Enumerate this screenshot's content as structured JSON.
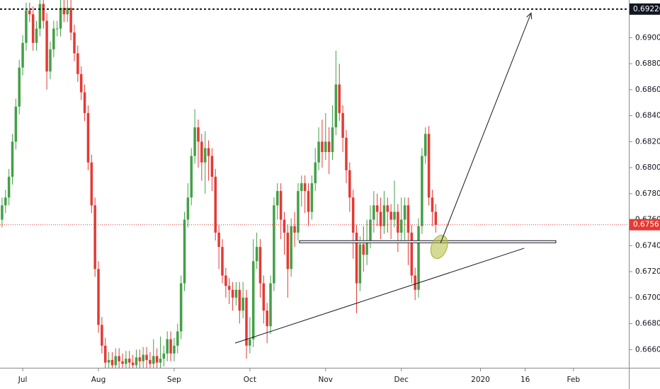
{
  "chart_data": {
    "type": "candlestick",
    "x": [
      0,
      1,
      2,
      3,
      4,
      5,
      6,
      7,
      8,
      9,
      10,
      11,
      12,
      13,
      14,
      15,
      16,
      17,
      18,
      19,
      20,
      21,
      22,
      23,
      24,
      25,
      26,
      27,
      28,
      29,
      30,
      31,
      32,
      33,
      34,
      35,
      36,
      37,
      38,
      39,
      40,
      41,
      42,
      43,
      44,
      45,
      46,
      47,
      48,
      49,
      50,
      51,
      52,
      53,
      54,
      55,
      56,
      57,
      58,
      59,
      60,
      61,
      62,
      63,
      64,
      65,
      66,
      67,
      68,
      69,
      70,
      71,
      72,
      73,
      74,
      75,
      76,
      77,
      78,
      79,
      80,
      81,
      82,
      83,
      84,
      85,
      86,
      87,
      88,
      89,
      90,
      91,
      92,
      93,
      94,
      95,
      96,
      97,
      98,
      99,
      100,
      101,
      102,
      103,
      104,
      105,
      106,
      107,
      108,
      109,
      110,
      111,
      112,
      113,
      114,
      115,
      116,
      117,
      118,
      119,
      120,
      121,
      122,
      123,
      124,
      125,
      126
    ],
    "open": [
      0.676,
      0.6771,
      0.6777,
      0.6793,
      0.682,
      0.6847,
      0.6877,
      0.6896,
      0.6921,
      0.6918,
      0.6896,
      0.6907,
      0.6926,
      0.6913,
      0.6874,
      0.6891,
      0.6907,
      0.6907,
      0.6923,
      0.6918,
      0.6923,
      0.6904,
      0.6888,
      0.6872,
      0.6858,
      0.6842,
      0.6804,
      0.6771,
      0.6722,
      0.6679,
      0.6663,
      0.665,
      0.6652,
      0.6648,
      0.6655,
      0.6651,
      0.6649,
      0.6653,
      0.665,
      0.6648,
      0.6654,
      0.6651,
      0.6656,
      0.6652,
      0.6649,
      0.6655,
      0.665,
      0.6653,
      0.6657,
      0.6668,
      0.6657,
      0.6663,
      0.6674,
      0.6711,
      0.676,
      0.6777,
      0.6809,
      0.6831,
      0.682,
      0.6804,
      0.6815,
      0.6809,
      0.6793,
      0.675,
      0.6739,
      0.6717,
      0.6709,
      0.6706,
      0.67,
      0.6706,
      0.669,
      0.67,
      0.6663,
      0.6668,
      0.6728,
      0.6739,
      0.6711,
      0.669,
      0.6678,
      0.6711,
      0.6771,
      0.6782,
      0.676,
      0.675,
      0.6722,
      0.6755,
      0.675,
      0.6782,
      0.6788,
      0.6782,
      0.6766,
      0.6788,
      0.6804,
      0.682,
      0.6812,
      0.682,
      0.6812,
      0.6831,
      0.6864,
      0.6842,
      0.6823,
      0.6798,
      0.6777,
      0.675,
      0.6711,
      0.6741,
      0.6733,
      0.6744,
      0.676,
      0.6771,
      0.6766,
      0.6755,
      0.6771,
      0.6766,
      0.676,
      0.6766,
      0.675,
      0.676,
      0.6771,
      0.675,
      0.6717,
      0.6706,
      0.6755,
      0.6809,
      0.6826,
      0.6777,
      0.6766
    ],
    "high": [
      0.6777,
      0.6783,
      0.6799,
      0.6826,
      0.6853,
      0.6883,
      0.6902,
      0.6927,
      0.6927,
      0.6924,
      0.6913,
      0.6932,
      0.6932,
      0.6919,
      0.6897,
      0.6913,
      0.6913,
      0.6929,
      0.6929,
      0.6929,
      0.6929,
      0.691,
      0.6894,
      0.6878,
      0.6864,
      0.6848,
      0.681,
      0.6777,
      0.6728,
      0.6685,
      0.6669,
      0.6658,
      0.6658,
      0.6661,
      0.6661,
      0.6657,
      0.6659,
      0.6659,
      0.6656,
      0.666,
      0.666,
      0.6662,
      0.6662,
      0.6658,
      0.6668,
      0.6661,
      0.667,
      0.6663,
      0.6674,
      0.6674,
      0.6669,
      0.668,
      0.6717,
      0.6766,
      0.6788,
      0.6815,
      0.6845,
      0.6837,
      0.6826,
      0.6828,
      0.6821,
      0.6815,
      0.6799,
      0.6756,
      0.6745,
      0.6723,
      0.6715,
      0.6712,
      0.6712,
      0.6712,
      0.6712,
      0.6706,
      0.6685,
      0.6745,
      0.675,
      0.6745,
      0.6717,
      0.6696,
      0.6717,
      0.6777,
      0.6788,
      0.6788,
      0.6766,
      0.6756,
      0.6761,
      0.6766,
      0.6788,
      0.6794,
      0.6794,
      0.6788,
      0.6794,
      0.6815,
      0.6831,
      0.6837,
      0.6842,
      0.6831,
      0.6848,
      0.689,
      0.688,
      0.6848,
      0.6829,
      0.6804,
      0.6783,
      0.6756,
      0.6747,
      0.6755,
      0.676,
      0.6771,
      0.6782,
      0.678,
      0.6777,
      0.6782,
      0.6777,
      0.6772,
      0.679,
      0.6772,
      0.6777,
      0.6777,
      0.6777,
      0.6756,
      0.6723,
      0.6761,
      0.6815,
      0.6831,
      0.6832,
      0.6783,
      0.6772
    ],
    "low": [
      0.6754,
      0.6765,
      0.6771,
      0.6787,
      0.6814,
      0.6841,
      0.6871,
      0.689,
      0.6912,
      0.689,
      0.689,
      0.6901,
      0.6907,
      0.686,
      0.6868,
      0.6885,
      0.6901,
      0.6901,
      0.6912,
      0.6912,
      0.6898,
      0.6882,
      0.6866,
      0.6852,
      0.6836,
      0.6798,
      0.6765,
      0.6716,
      0.6673,
      0.6657,
      0.6644,
      0.6644,
      0.6642,
      0.6642,
      0.6645,
      0.6643,
      0.6643,
      0.6644,
      0.6642,
      0.6642,
      0.6645,
      0.6645,
      0.6646,
      0.6643,
      0.6643,
      0.6644,
      0.6644,
      0.6647,
      0.6651,
      0.6651,
      0.6651,
      0.6657,
      0.6668,
      0.6705,
      0.6754,
      0.6771,
      0.6803,
      0.68,
      0.679,
      0.678,
      0.679,
      0.6782,
      0.6744,
      0.6722,
      0.6711,
      0.67,
      0.6695,
      0.669,
      0.6694,
      0.668,
      0.6684,
      0.6653,
      0.6657,
      0.6662,
      0.6722,
      0.67,
      0.668,
      0.6665,
      0.6672,
      0.6705,
      0.676,
      0.6745,
      0.6733,
      0.67,
      0.6716,
      0.6739,
      0.6744,
      0.677,
      0.6765,
      0.6755,
      0.676,
      0.6782,
      0.6798,
      0.68,
      0.6806,
      0.6795,
      0.6806,
      0.6825,
      0.6836,
      0.6812,
      0.6788,
      0.6766,
      0.673,
      0.6688,
      0.6705,
      0.672,
      0.6725,
      0.6738,
      0.675,
      0.6755,
      0.6745,
      0.6749,
      0.675,
      0.6745,
      0.6754,
      0.6735,
      0.6744,
      0.6744,
      0.6725,
      0.6711,
      0.6698,
      0.67,
      0.6749,
      0.6803,
      0.6771,
      0.6755,
      0.675
    ],
    "close": [
      0.6771,
      0.6777,
      0.6793,
      0.682,
      0.6847,
      0.6877,
      0.6896,
      0.6921,
      0.6918,
      0.6896,
      0.6907,
      0.6926,
      0.6913,
      0.6874,
      0.6891,
      0.6907,
      0.6907,
      0.6923,
      0.6918,
      0.6923,
      0.6904,
      0.6888,
      0.6872,
      0.6858,
      0.6842,
      0.6804,
      0.6771,
      0.6722,
      0.6679,
      0.6663,
      0.665,
      0.6652,
      0.6648,
      0.6655,
      0.6651,
      0.6649,
      0.6653,
      0.665,
      0.6648,
      0.6654,
      0.6651,
      0.6656,
      0.6652,
      0.6649,
      0.6655,
      0.665,
      0.6653,
      0.6657,
      0.6668,
      0.6657,
      0.6663,
      0.6674,
      0.6711,
      0.676,
      0.6777,
      0.6809,
      0.6831,
      0.682,
      0.6804,
      0.6815,
      0.6809,
      0.6793,
      0.675,
      0.6739,
      0.6717,
      0.6709,
      0.6706,
      0.67,
      0.6706,
      0.669,
      0.67,
      0.6663,
      0.6668,
      0.6728,
      0.6739,
      0.6711,
      0.669,
      0.6678,
      0.6711,
      0.6771,
      0.6782,
      0.676,
      0.675,
      0.6722,
      0.6755,
      0.675,
      0.6782,
      0.6788,
      0.6782,
      0.6766,
      0.6788,
      0.6804,
      0.682,
      0.6812,
      0.682,
      0.6812,
      0.6831,
      0.6864,
      0.6842,
      0.6823,
      0.6798,
      0.6777,
      0.675,
      0.6711,
      0.6741,
      0.6733,
      0.6744,
      0.676,
      0.6771,
      0.6766,
      0.6755,
      0.6771,
      0.6766,
      0.676,
      0.6766,
      0.675,
      0.676,
      0.6771,
      0.675,
      0.6717,
      0.6706,
      0.6755,
      0.6809,
      0.6826,
      0.6777,
      0.6766,
      0.6756
    ],
    "up_color": "#43a047",
    "down_color": "#e53935",
    "xlim": [
      -0.6,
      182.1
    ],
    "xticks": [
      {
        "value": 6,
        "label": "Jul"
      },
      {
        "value": 28,
        "label": "Aug"
      },
      {
        "value": 50,
        "label": "Sep"
      },
      {
        "value": 72,
        "label": "Oct"
      },
      {
        "value": 94,
        "label": "Nov"
      },
      {
        "value": 116,
        "label": "Dec"
      },
      {
        "value": 139,
        "label": "2020"
      },
      {
        "value": 152,
        "label": "16"
      },
      {
        "value": 166,
        "label": "Feb"
      }
    ],
    "ylim": [
      0.6646,
      0.6929
    ],
    "yticks": [
      {
        "value": 0.666,
        "label": "0.66600"
      },
      {
        "value": 0.668,
        "label": "0.66800"
      },
      {
        "value": 0.67,
        "label": "0.67000"
      },
      {
        "value": 0.672,
        "label": "0.67200"
      },
      {
        "value": 0.674,
        "label": "0.67400"
      },
      {
        "value": 0.676,
        "label": "0.67600"
      },
      {
        "value": 0.678,
        "label": "0.67800"
      },
      {
        "value": 0.68,
        "label": "0.68000"
      },
      {
        "value": 0.682,
        "label": "0.68200"
      },
      {
        "value": 0.684,
        "label": "0.68400"
      },
      {
        "value": 0.686,
        "label": "0.68600"
      },
      {
        "value": 0.688,
        "label": "0.68800"
      },
      {
        "value": 0.69,
        "label": "0.69000"
      }
    ],
    "grid": false,
    "price_lines": [
      {
        "value": 0.6922,
        "label": "0.69220",
        "color": "#131722"
      },
      {
        "value": 0.67561,
        "label": "0.67561",
        "color": "#e53935"
      }
    ],
    "support_line": {
      "x": [
        86.4,
        160.9
      ],
      "y": [
        0.6743,
        0.6743
      ]
    },
    "trend_line": {
      "x": [
        67.7,
        151.7
      ],
      "y": [
        0.6665,
        0.6738
      ]
    },
    "arrow": {
      "x": [
        127.4,
        153.7
      ],
      "y": [
        0.6742,
        0.6919
      ]
    },
    "highlight": {
      "x": 127,
      "y": 0.6739
    }
  }
}
